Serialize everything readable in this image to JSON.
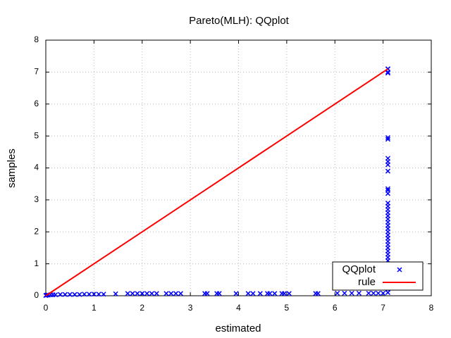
{
  "chart_data": {
    "type": "scatter",
    "title": "Pareto(MLH): QQplot",
    "x_label": "estimated",
    "y_label": "samples",
    "xlim": [
      0,
      8
    ],
    "ylim": [
      0,
      8
    ],
    "xticks": [
      0,
      1,
      2,
      3,
      4,
      5,
      6,
      7,
      8
    ],
    "yticks": [
      0,
      1,
      2,
      3,
      4,
      5,
      6,
      7,
      8
    ],
    "grid": true,
    "legend": "bottom-right",
    "series": [
      {
        "name": "QQplot",
        "color": "#0000ff",
        "style": "points",
        "x": [
          0,
          0.02,
          0.05,
          0.1,
          0.15,
          0.2,
          0.3,
          0.4,
          0.5,
          0.6,
          0.7,
          0.8,
          0.9,
          1.0,
          1.1,
          1.2,
          1.45,
          1.7,
          1.8,
          1.9,
          2.0,
          2.1,
          2.2,
          2.3,
          2.5,
          2.6,
          2.7,
          2.8,
          3.3,
          3.35,
          3.55,
          3.6,
          3.95,
          4.2,
          4.3,
          4.45,
          4.6,
          4.65,
          4.75,
          4.9,
          4.95,
          5.05,
          5.6,
          5.65,
          6.05,
          6.2,
          6.35,
          6.5,
          6.7,
          6.8,
          6.9,
          7.0,
          7.1,
          7.1,
          7.1,
          7.1,
          7.1,
          7.1,
          7.1,
          7.1,
          7.1,
          7.1,
          7.1,
          7.1,
          7.1,
          7.1,
          7.1,
          7.1,
          7.1,
          7.1,
          7.1,
          7.1,
          7.1,
          7.1,
          7.1,
          7.1,
          7.1,
          7.1,
          7.1,
          7.1,
          7.1,
          7.1,
          7.1,
          7.1,
          7.1,
          7.1,
          7.1,
          7.1,
          7.1,
          7.1,
          7.1,
          7.1,
          7.1,
          7.1
        ],
        "values": [
          0.01,
          0.02,
          0.02,
          0.03,
          0.03,
          0.03,
          0.04,
          0.04,
          0.04,
          0.04,
          0.04,
          0.05,
          0.05,
          0.05,
          0.05,
          0.05,
          0.06,
          0.07,
          0.07,
          0.07,
          0.07,
          0.07,
          0.07,
          0.07,
          0.07,
          0.07,
          0.07,
          0.07,
          0.07,
          0.07,
          0.07,
          0.07,
          0.07,
          0.07,
          0.07,
          0.07,
          0.07,
          0.07,
          0.07,
          0.07,
          0.07,
          0.07,
          0.07,
          0.07,
          0.08,
          0.08,
          0.08,
          0.08,
          0.08,
          0.08,
          0.08,
          0.08,
          0.1,
          0.2,
          0.3,
          0.4,
          0.5,
          0.6,
          0.7,
          0.8,
          0.9,
          1.0,
          1.1,
          1.2,
          1.3,
          1.4,
          1.5,
          1.6,
          1.7,
          1.8,
          1.9,
          2.0,
          2.1,
          2.2,
          2.3,
          2.4,
          2.5,
          2.6,
          2.7,
          2.8,
          2.9,
          3.2,
          3.3,
          3.35,
          3.9,
          4.1,
          4.2,
          4.3,
          4.9,
          4.95,
          6.97,
          7.1,
          7.0,
          7.1
        ]
      },
      {
        "name": "rule",
        "color": "#ff0000",
        "style": "lines",
        "x": [
          0,
          7.1
        ],
        "values": [
          0,
          7.1
        ]
      }
    ]
  }
}
